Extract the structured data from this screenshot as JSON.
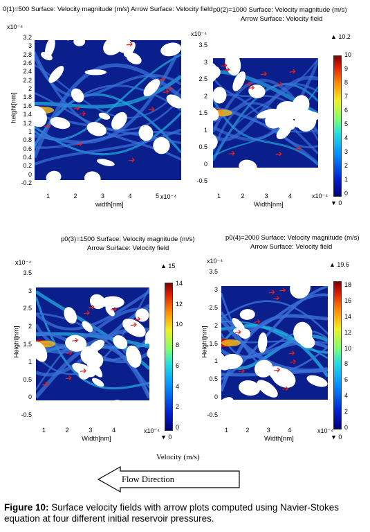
{
  "caption": {
    "label": "Figure 10:",
    "text": "Surface velocity fields with arrow plots computed using Navier-Stokes equation at four different initial reservoir pressures."
  },
  "bottom_axis_label": "Velocity (m/s)",
  "flow_direction_label": "Flow Direction",
  "colors": {
    "field_min": "#0a1f8c",
    "field_mid": "#22a8e0",
    "field_high": "#f0c020",
    "field_max": "#b01010",
    "arrow": "#e8201a"
  },
  "chart_data": [
    {
      "type": "heatmap",
      "title_line1": "0(1)=500 Surface: Velocity magnitude (m/s) Arrow Surface: Velocity field",
      "title_line2": "",
      "xlabel": "width[nm]",
      "ylabel": "height[nm]",
      "x_exponent": "x10⁻⁴",
      "y_exponent": "x10⁻⁴",
      "xticks": [
        "1",
        "2",
        "3",
        "4",
        "5"
      ],
      "yticks": [
        "3.2",
        "3",
        "2.8",
        "2.6",
        "2.4",
        "2.2",
        "2",
        "1.8",
        "1.6",
        "1.4",
        "1.2",
        "1",
        "0.8",
        "0.6",
        "0.4",
        "0.2",
        "0",
        "-0.2"
      ],
      "colorbar": null
    },
    {
      "type": "heatmap",
      "title_line1": "p0(2)=1000   Surface: Velocity magnitude (m/s)",
      "title_line2": "Arrow Surface: Velocity field",
      "xlabel": "Width[nm]",
      "ylabel": "",
      "x_exponent": "x10⁻⁴",
      "y_exponent": "x10⁻⁴",
      "xticks": [
        "1",
        "2",
        "3",
        "4"
      ],
      "yticks": [
        "3.5",
        "3",
        "2.5",
        "2",
        "1.5",
        "1",
        "0.5",
        "0",
        "-0.5"
      ],
      "colorbar": {
        "max_label": "▲ 10.2",
        "min_label": "▼ 0",
        "ticks": [
          "10",
          "9",
          "8",
          "7",
          "6",
          "5",
          "4",
          "3",
          "2",
          "1",
          "0"
        ]
      }
    },
    {
      "type": "heatmap",
      "title_line1": "p0(3)=1500   Surface: Velocity magnitude (m/s)",
      "title_line2": "Arrow Surface: Velocity field",
      "xlabel": "Width[nm]",
      "ylabel": "Height[nm]",
      "x_exponent": "x10⁻⁴",
      "y_exponent": "x10⁻⁴",
      "xticks": [
        "1",
        "2",
        "3",
        "4"
      ],
      "yticks": [
        "3.5",
        "3",
        "2.5",
        "2",
        "1.5",
        "1",
        "0.5",
        "0",
        "-0.5"
      ],
      "colorbar": {
        "max_label": "▲ 15",
        "min_label": "▼ 0",
        "ticks": [
          "14",
          "12",
          "10",
          "8",
          "6",
          "4",
          "2",
          "0"
        ]
      }
    },
    {
      "type": "heatmap",
      "title_line1": "p0(4)=2000   Surface: Velocity magnitude (m/s)",
      "title_line2": "Arrow Surface: Velocity field",
      "xlabel": "Width[nm]",
      "ylabel": "Height[nm]",
      "x_exponent": "x10⁻⁴",
      "y_exponent": "x10⁻⁴",
      "xticks": [
        "1",
        "2",
        "3",
        "4"
      ],
      "yticks": [
        "3.5",
        "3",
        "2.5",
        "2",
        "1.5",
        "1",
        "0.5",
        "0",
        "-0.5"
      ],
      "colorbar": {
        "max_label": "▲ 19.6",
        "min_label": "▼ 0",
        "ticks": [
          "18",
          "16",
          "14",
          "12",
          "10",
          "8",
          "6",
          "4",
          "2",
          "0"
        ]
      }
    }
  ]
}
